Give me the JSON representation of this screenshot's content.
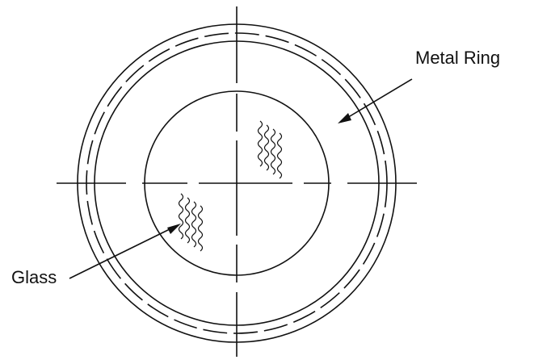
{
  "labels": {
    "metal_ring": "Metal Ring",
    "glass": "Glass"
  },
  "colors": {
    "line": "#111111",
    "background": "#ffffff"
  }
}
